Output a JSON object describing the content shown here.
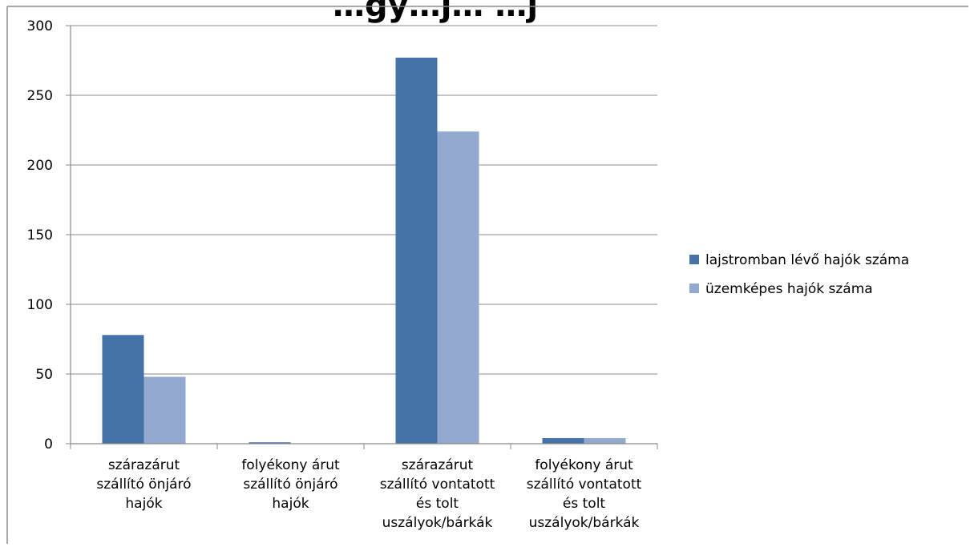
{
  "chart_data": {
    "type": "bar",
    "title": "…gy…j…   …j",
    "categories": [
      [
        "szárazárut",
        "szállító önjáró",
        "hajók"
      ],
      [
        "folyékony árut",
        "szállító önjáró",
        "hajók"
      ],
      [
        "szárazárut",
        "szállító vontatott",
        "és tolt",
        "uszályok/bárkák"
      ],
      [
        "folyékony árut",
        "szállító vontatott",
        "és tolt",
        "uszályok/bárkák"
      ]
    ],
    "series": [
      {
        "name": "lajstromban lévő hajók száma",
        "color": "#4572A7",
        "values": [
          78,
          1,
          277,
          4
        ]
      },
      {
        "name": "üzemképes hajók száma",
        "color": "#93A9CF",
        "values": [
          48,
          0,
          224,
          4
        ]
      }
    ],
    "ylim": [
      0,
      300
    ],
    "yticks": [
      "0",
      "50",
      "100",
      "150",
      "200",
      "250",
      "300"
    ],
    "grid": true,
    "legend_position": "right"
  }
}
